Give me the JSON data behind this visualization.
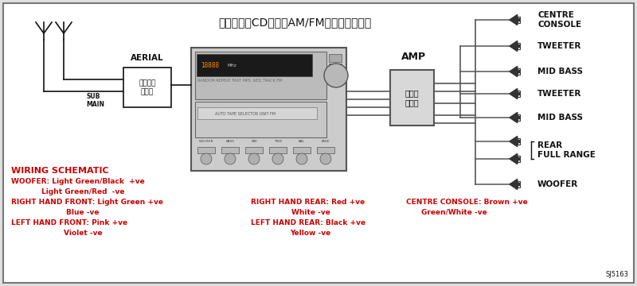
{
  "bg_color": "#ffffff",
  "border_color": "#888888",
  "title_jp": "カセット・CD一体型AM/FM電子チューナー",
  "aerial_label": "AERIAL",
  "sub_label": "SUB",
  "main_label": "MAIN",
  "amp_box_label": "アンテナ\nアンプ",
  "amp_label": "AMP",
  "power_amp_label": "パワー\nアンプ",
  "wiring_title": "WIRING SCHEMATIC",
  "wiring_col1": [
    [
      "WOOFER: Light Green/Black  +ve",
      false
    ],
    [
      "Light Green/Red  -ve",
      true
    ],
    [
      "RIGHT HAND FRONT: Light Green +ve",
      false
    ],
    [
      "Blue -ve",
      true
    ],
    [
      "LEFT HAND FRONT: Pink +ve",
      false
    ],
    [
      "Violet -ve",
      true
    ]
  ],
  "wiring_col2": [
    [
      "RIGHT HAND REAR: Red +ve",
      false
    ],
    [
      "White -ve",
      true
    ],
    [
      "LEFT HAND REAR: Black +ve",
      false
    ],
    [
      "Yellow -ve",
      true
    ]
  ],
  "wiring_col3": [
    [
      "CENTRE CONSOLE: Brown +ve",
      false
    ],
    [
      "Green/White -ve",
      true
    ]
  ],
  "red_color": "#cc0000",
  "black_color": "#111111",
  "line_color": "#555555",
  "sj_label": "SJ5163",
  "speaker_labels": [
    "CENTRE\nCONSOLE",
    "TWEETER",
    "MID BASS",
    "TWEETER",
    "MID BASS",
    "REAR\nFULL RANGE",
    "REAR\nFULL RANGE",
    "WOOFER"
  ]
}
